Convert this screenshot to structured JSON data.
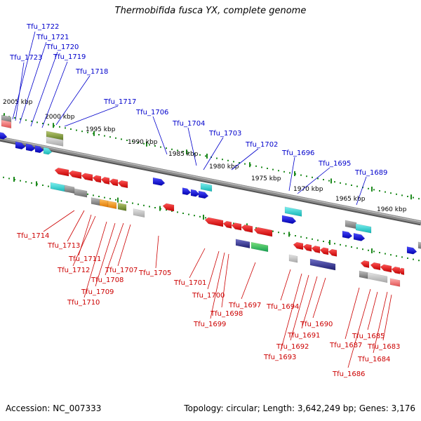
{
  "title": "Thermobifida fusca YX, complete genome",
  "footer": {
    "accession": "Accession: NC_007333",
    "info": "Topology: circular; Length: 3,642,249 bp; Genes: 3,176"
  },
  "colors": {
    "backbone": "#8c8c8c",
    "tick": "#1e8a1e",
    "upper_labels": "#0000cc",
    "lower_labels": "#cc0000"
  },
  "scale_labels": [
    "2005 kbp",
    "2000 kbp",
    "1995 kbp",
    "1990 kbp",
    "1985 kbp",
    "1980 kbp",
    "1975 kbp",
    "1970 kbp",
    "1965 kbp",
    "1960 kbp"
  ],
  "upper_genes": [
    "Tfu_1722",
    "Tfu_1721",
    "Tfu_1720",
    "Tfu_1723",
    "Tfu_1719",
    "Tfu_1718",
    "Tfu_1717",
    "Tfu_1706",
    "Tfu_1704",
    "Tfu_1703",
    "Tfu_1702",
    "Tfu_1696",
    "Tfu_1695",
    "Tfu_1689"
  ],
  "lower_genes": [
    "Tfu_1714",
    "Tfu_1713",
    "Tfu_1711",
    "Tfu_1712",
    "Tfu_1707",
    "Tfu_1708",
    "Tfu_1709",
    "Tfu_1710",
    "Tfu_1705",
    "Tfu_1701",
    "Tfu_1700",
    "Tfu_1698",
    "Tfu_1699",
    "Tfu_1697",
    "Tfu_1694",
    "Tfu_1690",
    "Tfu_1691",
    "Tfu_1692",
    "Tfu_1693",
    "Tfu_1687",
    "Tfu_1685",
    "Tfu_1683",
    "Tfu_1684",
    "Tfu_1686"
  ]
}
